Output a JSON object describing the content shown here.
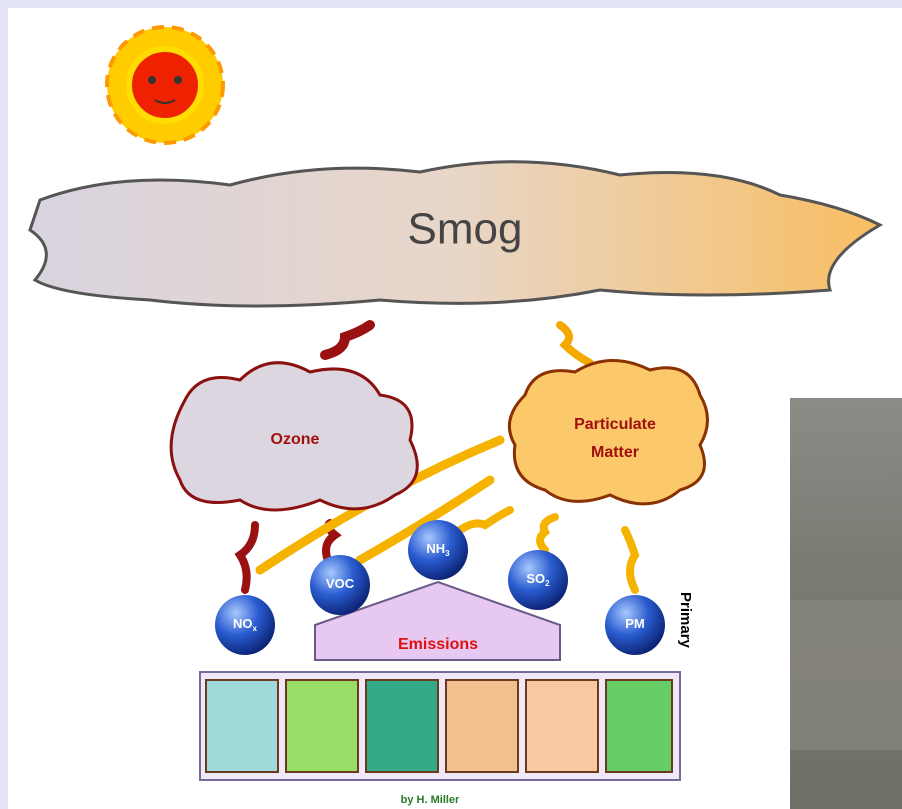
{
  "title": "Smog",
  "secondary": [
    {
      "label": [
        "Ozone"
      ]
    },
    {
      "label": [
        "Particulate",
        "Matter"
      ]
    }
  ],
  "pollutants": [
    {
      "text": "NO",
      "sub": "x"
    },
    {
      "text": "VOC"
    },
    {
      "text": "NH",
      "sub": "3"
    },
    {
      "text": "SO",
      "sub": "2"
    },
    {
      "text": "PM"
    }
  ],
  "primary_label": "Primary",
  "emissions_label": "Emissions",
  "credit": "by H. Miller"
}
